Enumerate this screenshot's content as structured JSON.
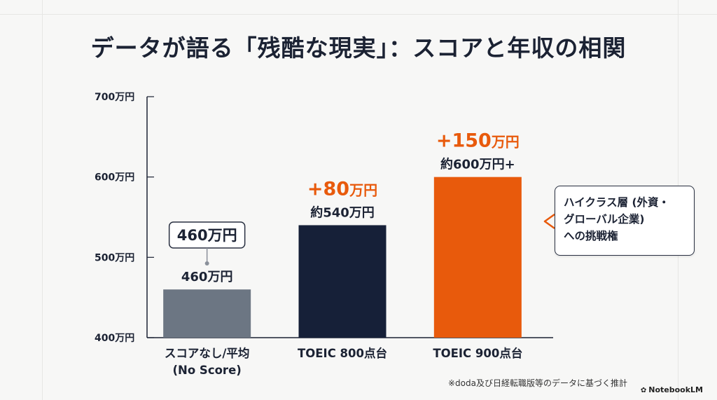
{
  "title": "データが語る「残酷な現実」：スコアと年収の相関",
  "chart_data": {
    "type": "bar",
    "categories": [
      [
        "スコアなし/平均",
        "(No Score)"
      ],
      [
        "TOEIC 800点台"
      ],
      [
        "TOEIC 900点台"
      ]
    ],
    "values": [
      460,
      540,
      600
    ],
    "value_labels": [
      "460万円",
      "約540万円",
      "約600万円+"
    ],
    "increase_labels": [
      "",
      "+80万円",
      "+150万円"
    ],
    "badge_label": "460万円",
    "ylim": [
      400,
      700
    ],
    "yticks": [
      400,
      500,
      600,
      700
    ],
    "ytick_labels": [
      "400万円",
      "500万円",
      "600万円",
      "700万円"
    ],
    "grid": false,
    "colors": [
      "#6c7683",
      "#162038",
      "#e85a0c"
    ],
    "accent_color": "#e85a0c"
  },
  "callout": {
    "lines": [
      "ハイクラス層 (外資・",
      "グローバル企業)",
      "への挑戦権"
    ]
  },
  "footnote": "※doda及び日経転職版等のデータに基づく推計",
  "brand": {
    "icon": "notebooklm-icon",
    "name": "NotebookLM"
  }
}
